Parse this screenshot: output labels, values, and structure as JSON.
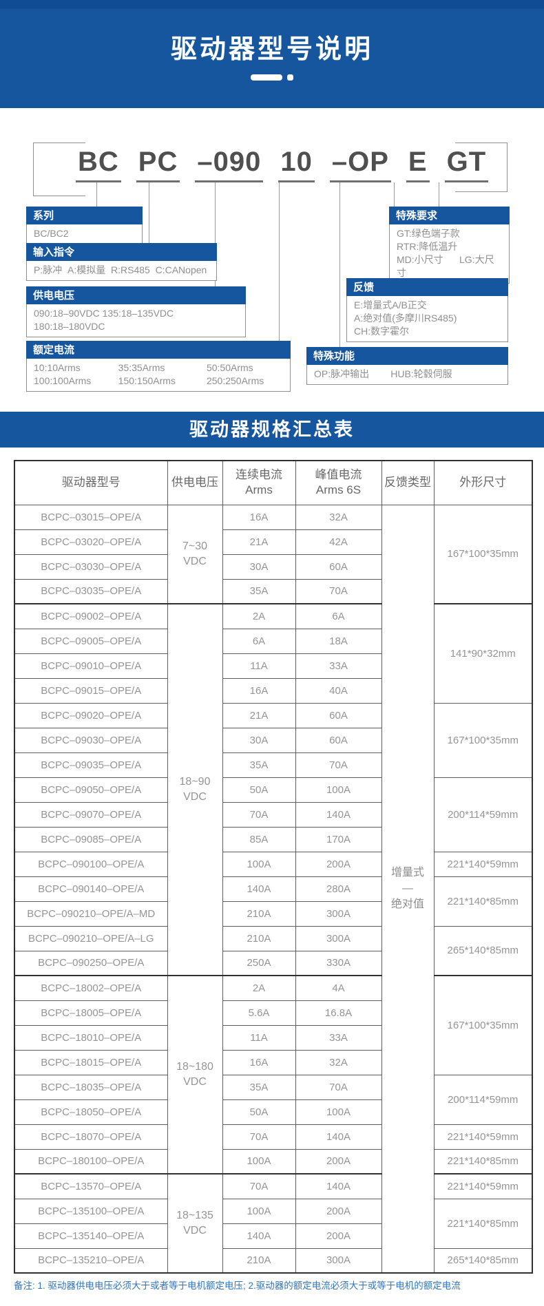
{
  "colors": {
    "primary_blue": "#15569f",
    "header_strip_blue": "#0f4c93",
    "note_blue": "#3274b8"
  },
  "header": {
    "title": "驱动器型号说明"
  },
  "model_diagram": {
    "segments": [
      "BC",
      "PC",
      "–090",
      "10",
      "–OP",
      "E",
      "GT"
    ],
    "callouts": [
      {
        "title": "系列",
        "lines": [
          "BC/BC2"
        ]
      },
      {
        "title": "输入指令",
        "lines": [
          "P:脉冲  A:模拟量  R:RS485  C:CANopen"
        ]
      },
      {
        "title": "供电电压",
        "lines": [
          "090:18–90VDC 135:18–135VDC",
          "180:18–180VDC"
        ]
      },
      {
        "title": "额定电流",
        "items": [
          "10:10Arms",
          "35:35Arms",
          "50:50Arms",
          "100:100Arms",
          "150:150Arms",
          "250:250Arms"
        ]
      },
      {
        "title": "特殊要求",
        "lines": [
          "GT:绿色端子款",
          "RTR:降低温升",
          "MD:小尺寸      LG:大尺寸"
        ]
      },
      {
        "title": "反馈",
        "lines": [
          "E:增量式A/B正交",
          "A:绝对值(多摩川RS485)",
          "CH:数字霍尔"
        ]
      },
      {
        "title": "特殊功能",
        "lines": [
          "OP:脉冲输出        HUB:轮毂伺服"
        ]
      }
    ]
  },
  "summary_banner": "驱动器规格汇总表",
  "spec_table": {
    "headers": [
      [
        "驱动器型号"
      ],
      [
        "供电电压"
      ],
      [
        "连续电流",
        "Arms"
      ],
      [
        "峰值电流",
        "Arms  6S"
      ],
      [
        "反馈类型"
      ],
      [
        "外形尺寸"
      ]
    ],
    "rows": [
      {
        "model": "BCPC–03015–OPE/A",
        "cont": "16A",
        "peak": "32A"
      },
      {
        "model": "BCPC–03020–OPE/A",
        "cont": "21A",
        "peak": "42A"
      },
      {
        "model": "BCPC–03030–OPE/A",
        "cont": "30A",
        "peak": "60A"
      },
      {
        "model": "BCPC–03035–OPE/A",
        "cont": "35A",
        "peak": "70A"
      },
      {
        "model": "BCPC–09002–OPE/A",
        "cont": "2A",
        "peak": "6A"
      },
      {
        "model": "BCPC–09005–OPE/A",
        "cont": "6A",
        "peak": "18A"
      },
      {
        "model": "BCPC–09010–OPE/A",
        "cont": "11A",
        "peak": "33A"
      },
      {
        "model": "BCPC–09015–OPE/A",
        "cont": "16A",
        "peak": "40A"
      },
      {
        "model": "BCPC–09020–OPE/A",
        "cont": "21A",
        "peak": "60A"
      },
      {
        "model": "BCPC–09030–OPE/A",
        "cont": "30A",
        "peak": "60A"
      },
      {
        "model": "BCPC–09035–OPE/A",
        "cont": "35A",
        "peak": "70A"
      },
      {
        "model": "BCPC–09050–OPE/A",
        "cont": "50A",
        "peak": "100A"
      },
      {
        "model": "BCPC–09070–OPE/A",
        "cont": "70A",
        "peak": "140A"
      },
      {
        "model": "BCPC–09085–OPE/A",
        "cont": "85A",
        "peak": "170A"
      },
      {
        "model": "BCPC–090100–OPE/A",
        "cont": "100A",
        "peak": "200A"
      },
      {
        "model": "BCPC–090140–OPE/A",
        "cont": "140A",
        "peak": "280A"
      },
      {
        "model": "BCPC–090210–OPE/A–MD",
        "cont": "210A",
        "peak": "300A"
      },
      {
        "model": "BCPC–090210–OPE/A–LG",
        "cont": "210A",
        "peak": "300A"
      },
      {
        "model": "BCPC–090250–OPE/A",
        "cont": "250A",
        "peak": "330A"
      },
      {
        "model": "BCPC–18002–OPE/A",
        "cont": "2A",
        "peak": "4A"
      },
      {
        "model": "BCPC–18005–OPE/A",
        "cont": "5.6A",
        "peak": "16.8A"
      },
      {
        "model": "BCPC–18010–OPE/A",
        "cont": "11A",
        "peak": "33A"
      },
      {
        "model": "BCPC–18015–OPE/A",
        "cont": "16A",
        "peak": "32A"
      },
      {
        "model": "BCPC–18035–OPE/A",
        "cont": "35A",
        "peak": "70A"
      },
      {
        "model": "BCPC–18050–OPE/A",
        "cont": "50A",
        "peak": "100A"
      },
      {
        "model": "BCPC–18070–OPE/A",
        "cont": "70A",
        "peak": "140A"
      },
      {
        "model": "BCPC–180100–OPE/A",
        "cont": "100A",
        "peak": "200A"
      },
      {
        "model": "BCPC–13570–OPE/A",
        "cont": "70A",
        "peak": "140A"
      },
      {
        "model": "BCPC–135100–OPE/A",
        "cont": "100A",
        "peak": "200A"
      },
      {
        "model": "BCPC–135140–OPE/A",
        "cont": "140A",
        "peak": "200A"
      },
      {
        "model": "BCPC–135210–OPE/A",
        "cont": "210A",
        "peak": "300A"
      }
    ],
    "voltage_groups": [
      {
        "lines": [
          "7~30",
          "VDC"
        ],
        "span": 4
      },
      {
        "lines": [
          "18~90",
          "VDC"
        ],
        "span": 15
      },
      {
        "lines": [
          "18~180",
          "VDC"
        ],
        "span": 8
      },
      {
        "lines": [
          "18~135",
          "VDC"
        ],
        "span": 4
      }
    ],
    "feedback_group": {
      "lines": [
        "增量式",
        "—",
        "绝对值"
      ],
      "span": 31
    },
    "dim_groups": [
      {
        "label": "167*100*35mm",
        "span": 4
      },
      {
        "label": "141*90*32mm",
        "span": 4
      },
      {
        "label": "167*100*35mm",
        "span": 3
      },
      {
        "label": "200*114*59mm",
        "span": 3
      },
      {
        "label": "221*140*59mm",
        "span": 1
      },
      {
        "label": "221*140*85mm",
        "span": 2
      },
      {
        "label": "265*140*85mm",
        "span": 2
      },
      {
        "label": "167*100*35mm",
        "span": 4
      },
      {
        "label": "200*114*59mm",
        "span": 2
      },
      {
        "label": "221*140*59mm",
        "span": 1
      },
      {
        "label": "221*140*85mm",
        "span": 1
      },
      {
        "label": "221*140*59mm",
        "span": 1
      },
      {
        "label": "221*140*85mm",
        "span": 2
      },
      {
        "label": "265*140*85mm",
        "span": 1
      }
    ]
  },
  "footer_note": "备注: 1. 驱动器供电电压必须大于或者等于电机额定电压; 2.驱动器的额定电流必须大于或等于电机的额定电流"
}
